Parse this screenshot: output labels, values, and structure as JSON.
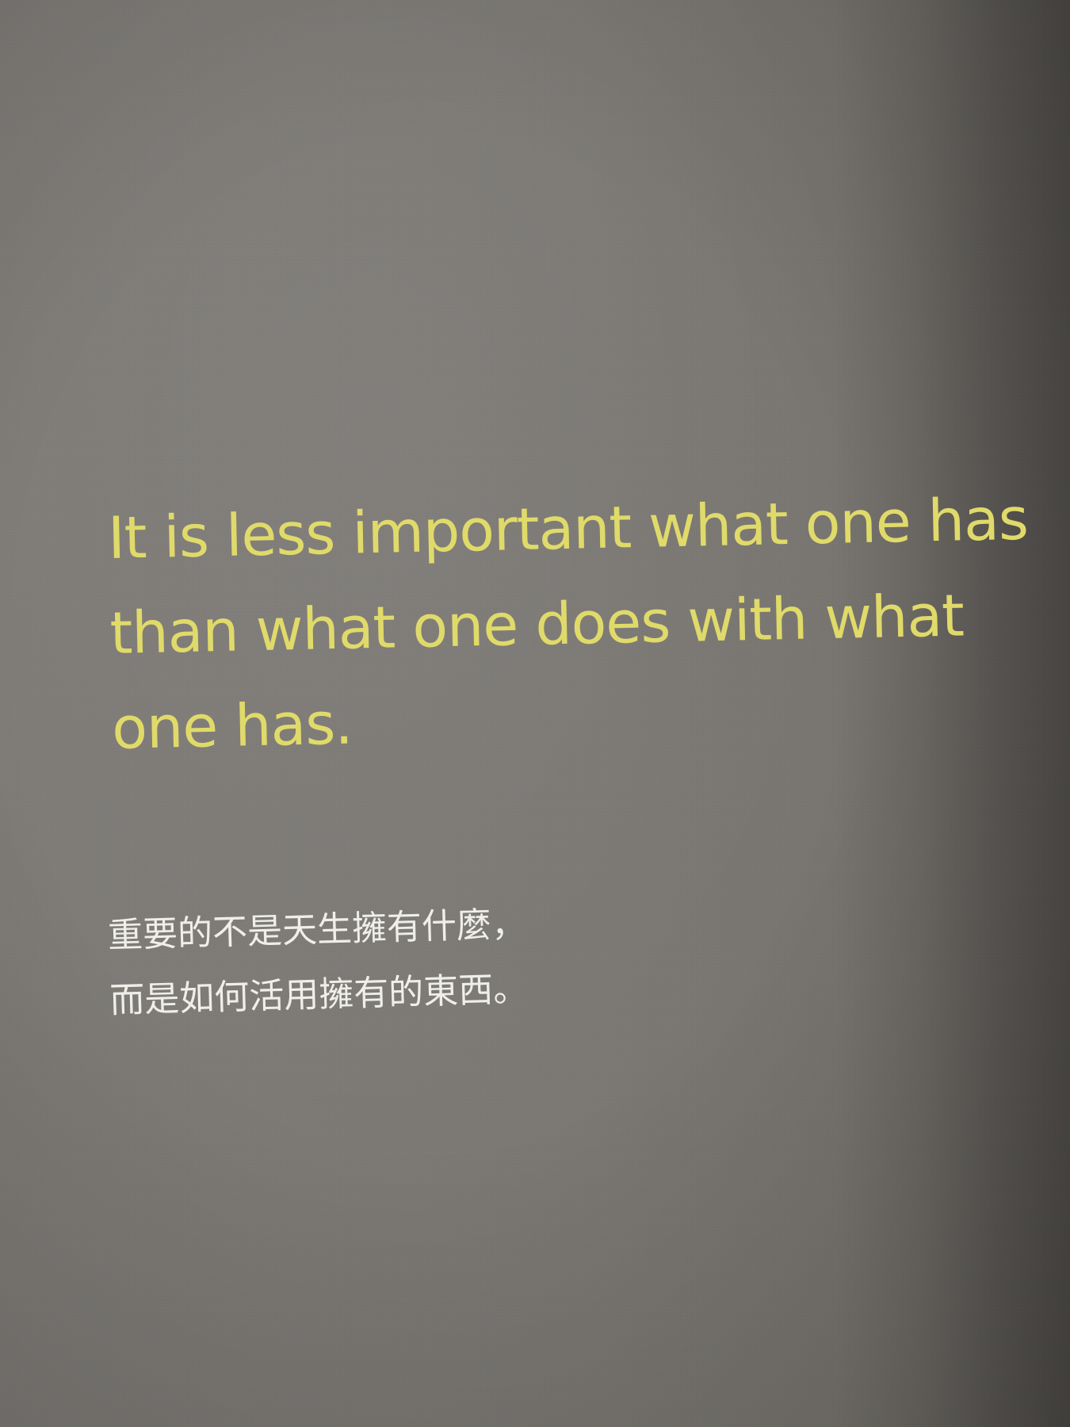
{
  "quote": {
    "english_lines": [
      "It is less important what one has",
      "than what one does with what",
      "one has."
    ],
    "chinese_lines": [
      "重要的不是天生擁有什麼，",
      "而是如何活用擁有的東西。"
    ]
  },
  "colors": {
    "background": "#7a7773",
    "english_text": "#e0da6a",
    "chinese_text": "#efefe8"
  }
}
